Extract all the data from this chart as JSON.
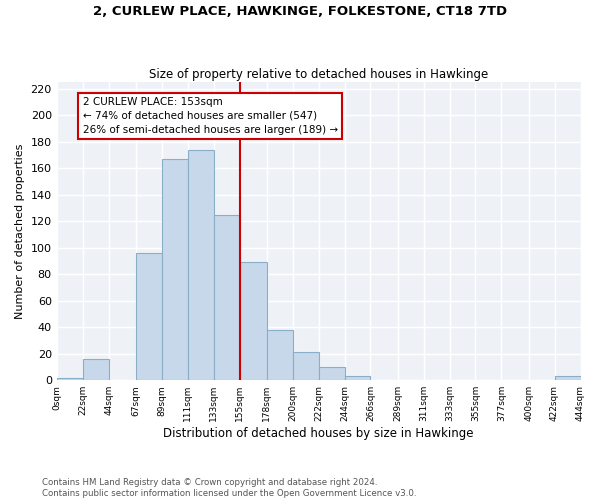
{
  "title": "2, CURLEW PLACE, HAWKINGE, FOLKESTONE, CT18 7TD",
  "subtitle": "Size of property relative to detached houses in Hawkinge",
  "xlabel": "Distribution of detached houses by size in Hawkinge",
  "ylabel": "Number of detached properties",
  "bar_color": "#c8d8eb",
  "bar_edge_color": "#8aaec8",
  "bin_edges": [
    0,
    22,
    44,
    67,
    89,
    111,
    133,
    155,
    178,
    200,
    222,
    244,
    266,
    289,
    311,
    333,
    355,
    377,
    400,
    422,
    444
  ],
  "bar_heights": [
    2,
    16,
    0,
    96,
    167,
    174,
    125,
    89,
    38,
    21,
    10,
    3,
    0,
    0,
    0,
    0,
    0,
    0,
    0,
    3
  ],
  "tick_labels": [
    "0sqm",
    "22sqm",
    "44sqm",
    "67sqm",
    "89sqm",
    "111sqm",
    "133sqm",
    "155sqm",
    "178sqm",
    "200sqm",
    "222sqm",
    "244sqm",
    "266sqm",
    "289sqm",
    "311sqm",
    "333sqm",
    "355sqm",
    "377sqm",
    "400sqm",
    "422sqm",
    "444sqm"
  ],
  "ylim": [
    0,
    225
  ],
  "yticks": [
    0,
    20,
    40,
    60,
    80,
    100,
    120,
    140,
    160,
    180,
    200,
    220
  ],
  "property_line_x": 155,
  "property_line_color": "#cc0000",
  "annotation_line1": "2 CURLEW PLACE: 153sqm",
  "annotation_line2": "← 74% of detached houses are smaller (547)",
  "annotation_line3": "26% of semi-detached houses are larger (189) →",
  "footnote1": "Contains HM Land Registry data © Crown copyright and database right 2024.",
  "footnote2": "Contains public sector information licensed under the Open Government Licence v3.0.",
  "background_color": "#ffffff",
  "plot_bg_color": "#eef2f7",
  "grid_color": "#ffffff"
}
